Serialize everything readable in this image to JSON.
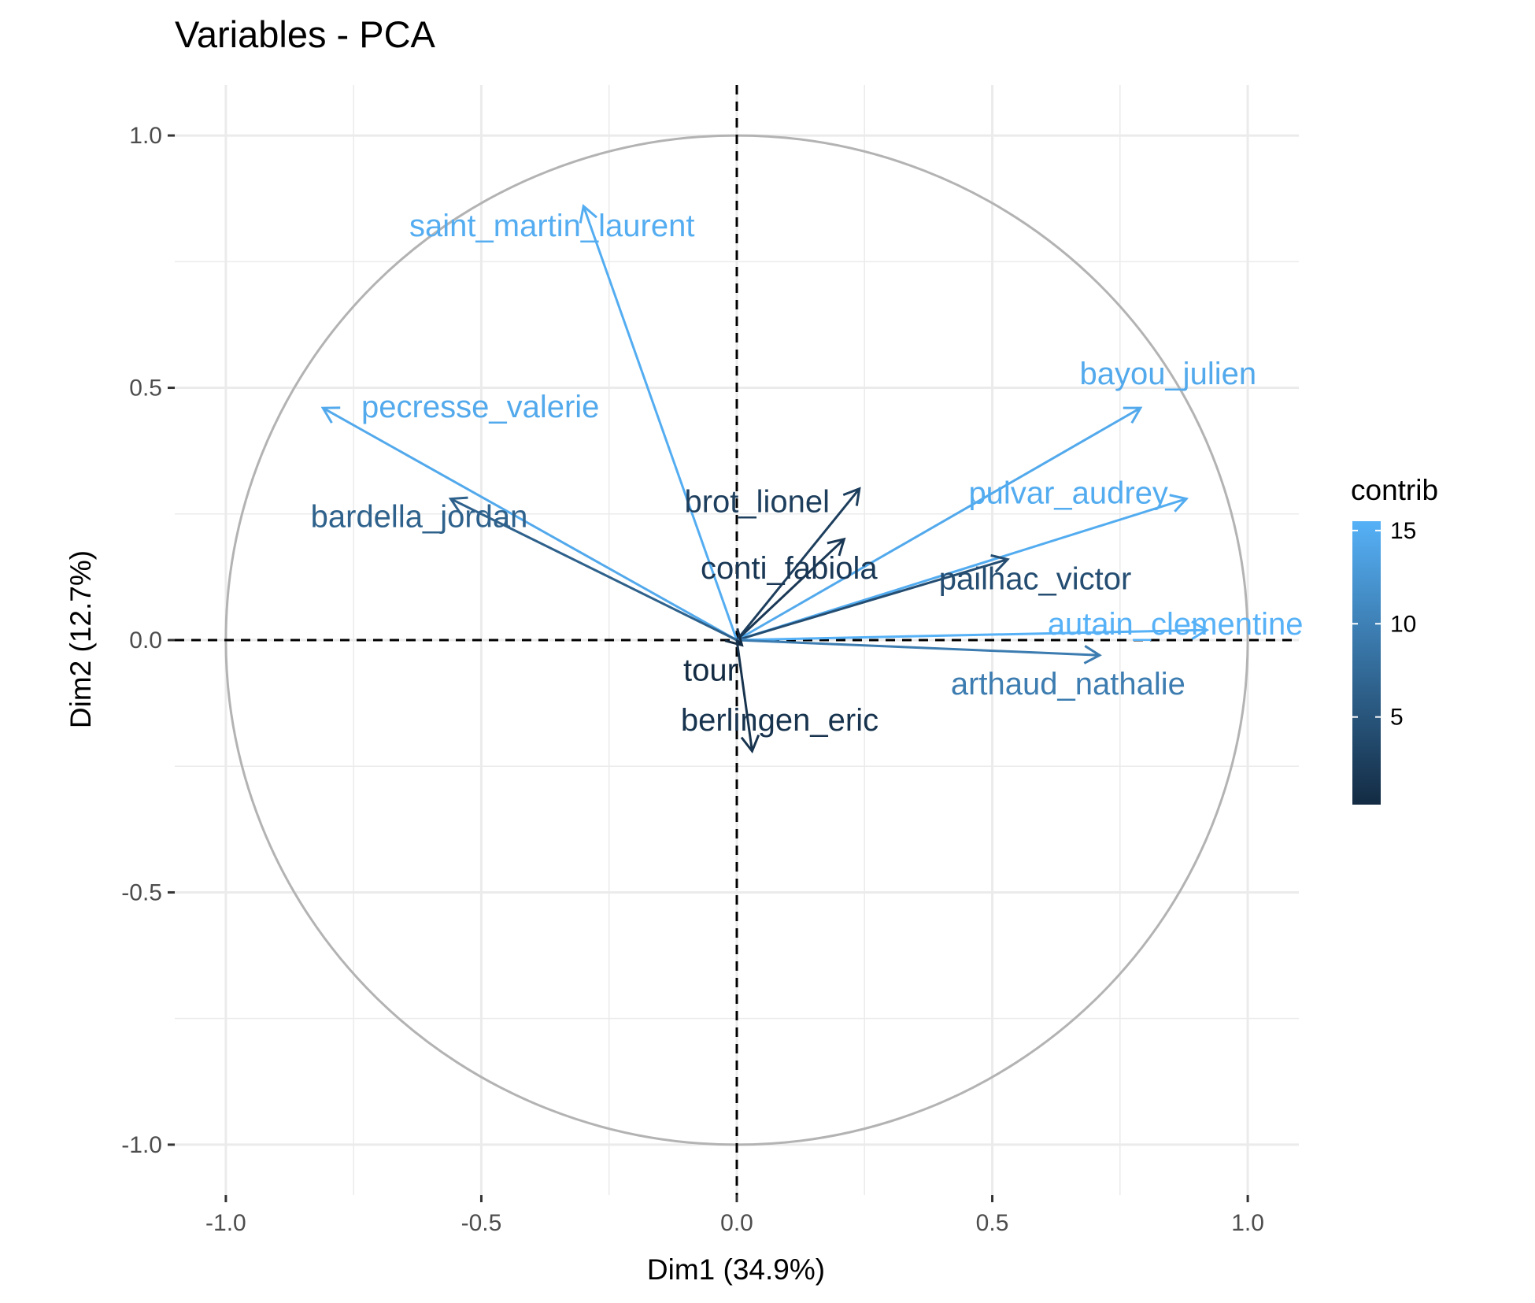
{
  "chart_data": {
    "type": "scatter",
    "subtype": "pca-variable-correlation-circle",
    "title": "Variables - PCA",
    "xlabel": "Dim1 (34.9%)",
    "ylabel": "Dim2 (12.7%)",
    "xlim": [
      -1.1,
      1.1
    ],
    "ylim": [
      -1.1,
      1.1
    ],
    "x_ticks": [
      "-1.0",
      "-0.5",
      "0.0",
      "0.5",
      "1.0"
    ],
    "y_ticks": [
      "1.0",
      "0.5",
      "0.0",
      "-0.5",
      "-1.0"
    ],
    "x_tick_values": [
      -1.0,
      -0.5,
      0.0,
      0.5,
      1.0
    ],
    "y_tick_values": [
      1.0,
      0.5,
      0.0,
      -0.5,
      -1.0
    ],
    "grid": true,
    "unit_circle": true,
    "legend": {
      "title": "contrib",
      "position": "right",
      "range": [
        0.3,
        15.5
      ],
      "ticks": [
        "15",
        "10",
        "5"
      ],
      "tick_values": [
        15,
        10,
        5
      ],
      "color_low": "#132B43",
      "color_high": "#56B1F7"
    },
    "variables": [
      {
        "name": "saint_martin_laurent",
        "x": -0.3,
        "y": 0.86,
        "contrib": 15.0
      },
      {
        "name": "pecresse_valerie",
        "x": -0.81,
        "y": 0.46,
        "contrib": 14.6
      },
      {
        "name": "bardella_jordan",
        "x": -0.56,
        "y": 0.28,
        "contrib": 6.4
      },
      {
        "name": "bayou_julien",
        "x": 0.79,
        "y": 0.46,
        "contrib": 14.6
      },
      {
        "name": "pulvar_audrey",
        "x": 0.88,
        "y": 0.28,
        "contrib": 14.9
      },
      {
        "name": "brot_lionel",
        "x": 0.24,
        "y": 0.3,
        "contrib": 2.5
      },
      {
        "name": "conti_fabiola",
        "x": 0.21,
        "y": 0.2,
        "contrib": 1.8
      },
      {
        "name": "pailhac_victor",
        "x": 0.53,
        "y": 0.16,
        "contrib": 4.2
      },
      {
        "name": "autain_clementine",
        "x": 0.92,
        "y": 0.02,
        "contrib": 15.5
      },
      {
        "name": "arthaud_nathalie",
        "x": 0.71,
        "y": -0.03,
        "contrib": 9.5
      },
      {
        "name": "tour",
        "x": 0.01,
        "y": -0.01,
        "contrib": 0.3
      },
      {
        "name": "berlingen_eric",
        "x": 0.03,
        "y": -0.22,
        "contrib": 1.2
      }
    ]
  }
}
